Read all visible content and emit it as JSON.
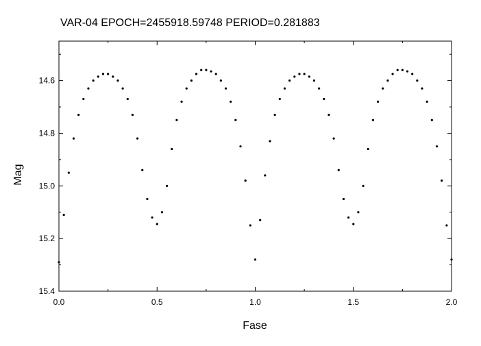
{
  "chart_data": {
    "type": "scatter",
    "title": "VAR-04    EPOCH=2455918.59748    PERIOD=0.281883",
    "xlabel": "Fase",
    "ylabel": "Mag",
    "xlim": [
      0.0,
      2.0
    ],
    "ylim": [
      15.4,
      14.45
    ],
    "y_inverted": true,
    "x_ticks": [
      "0.0",
      "0.5",
      "1.0",
      "1.5",
      "2.0"
    ],
    "y_ticks": [
      "14.6",
      "14.8",
      "15.0",
      "15.2",
      "15.4"
    ],
    "grid": false,
    "marker_color": "#000000",
    "series": [
      {
        "x": [
          0.0,
          0.025,
          0.05,
          0.075,
          0.1,
          0.125,
          0.15,
          0.175,
          0.2,
          0.225,
          0.25,
          0.275,
          0.3,
          0.325,
          0.35,
          0.375,
          0.4,
          0.425,
          0.45,
          0.475,
          0.5,
          0.525,
          0.55,
          0.575,
          0.6,
          0.625,
          0.65,
          0.675,
          0.7,
          0.725,
          0.75,
          0.775,
          0.8,
          0.825,
          0.85,
          0.875,
          0.9,
          0.925,
          0.95,
          0.975,
          1.0,
          1.025,
          1.05,
          1.075,
          1.1,
          1.125,
          1.15,
          1.175,
          1.2,
          1.225,
          1.25,
          1.275,
          1.3,
          1.325,
          1.35,
          1.375,
          1.4,
          1.425,
          1.45,
          1.475,
          1.5,
          1.525,
          1.55,
          1.575,
          1.6,
          1.625,
          1.65,
          1.675,
          1.7,
          1.725,
          1.75,
          1.775,
          1.8,
          1.825,
          1.85,
          1.875,
          1.9,
          1.925,
          1.95,
          1.975,
          2.0
        ],
        "y": [
          15.29,
          15.11,
          14.95,
          14.82,
          14.73,
          14.67,
          14.63,
          14.6,
          14.585,
          14.575,
          14.575,
          14.585,
          14.6,
          14.63,
          14.67,
          14.73,
          14.82,
          14.94,
          15.05,
          15.12,
          15.145,
          15.1,
          15.0,
          14.86,
          14.75,
          14.68,
          14.63,
          14.6,
          14.575,
          14.56,
          14.56,
          14.565,
          14.575,
          14.6,
          14.63,
          14.68,
          14.75,
          14.85,
          14.98,
          15.15,
          15.28,
          15.13,
          14.96,
          14.83,
          14.73,
          14.67,
          14.63,
          14.6,
          14.585,
          14.575,
          14.575,
          14.585,
          14.6,
          14.63,
          14.67,
          14.73,
          14.82,
          14.94,
          15.05,
          15.12,
          15.145,
          15.1,
          15.0,
          14.86,
          14.75,
          14.68,
          14.63,
          14.6,
          14.575,
          14.56,
          14.56,
          14.565,
          14.575,
          14.6,
          14.63,
          14.68,
          14.75,
          14.85,
          14.98,
          15.15,
          15.28
        ]
      }
    ]
  }
}
